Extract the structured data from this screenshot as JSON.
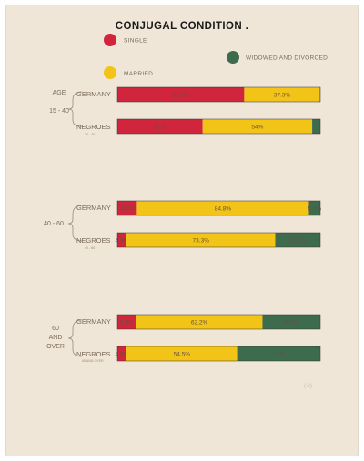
{
  "chart_data": {
    "type": "bar",
    "title": "CONJUGAL CONDITION .",
    "legend": {
      "placement": "top",
      "entries": [
        {
          "key": "single",
          "label": "SINGLE",
          "color": "#d0253c"
        },
        {
          "key": "married",
          "label": "MARRIED",
          "color": "#f2c418"
        },
        {
          "key": "widowed",
          "label": "WIDOWED AND DIVORCED",
          "color": "#3d6b4e"
        }
      ]
    },
    "groups": [
      {
        "age_label": [
          "AGE",
          "15 - 40"
        ],
        "rows": [
          {
            "label": "GERMANY",
            "sublabel": "",
            "single": 62.5,
            "married": 37.3,
            "widowed": 0.2,
            "single_label": "62.5%",
            "married_label": "37.3%",
            "widowed_label": ""
          },
          {
            "label": "NEGROES",
            "sublabel": "15 - 40",
            "single": 42,
            "married": 54,
            "widowed": 4,
            "single_label": "42%",
            "married_label": "54%",
            "widowed_label": ""
          }
        ]
      },
      {
        "age_label": [
          "40 - 60"
        ],
        "rows": [
          {
            "label": "GERMANY",
            "sublabel": "",
            "single": 9.6,
            "married": 84.8,
            "widowed": 5.6,
            "single_label": "9.6%",
            "married_label": "84.8%",
            "widowed_label": "5.6%"
          },
          {
            "label": "NEGROES",
            "sublabel": "40 - 60",
            "single": 4.5,
            "married": 73.3,
            "widowed": 22.2,
            "single_label": "4.5%",
            "married_label": "73.3%",
            "widowed_label": "22.2%"
          }
        ]
      },
      {
        "age_label": [
          "60",
          "AND",
          "OVER"
        ],
        "rows": [
          {
            "label": "GERMANY",
            "sublabel": "",
            "single": 9.3,
            "married": 62.2,
            "widowed": 28.5,
            "single_label": "9.3%",
            "married_label": "62.2%",
            "widowed_label": "28.5%"
          },
          {
            "label": "NEGROES",
            "sublabel": "60 AND OVER",
            "single": 4.5,
            "married": 54.5,
            "widowed": 41,
            "single_label": "4.5%",
            "married_label": "54.5%",
            "widowed_label": "41%"
          }
        ]
      }
    ],
    "corner_mark": "(.6)"
  }
}
